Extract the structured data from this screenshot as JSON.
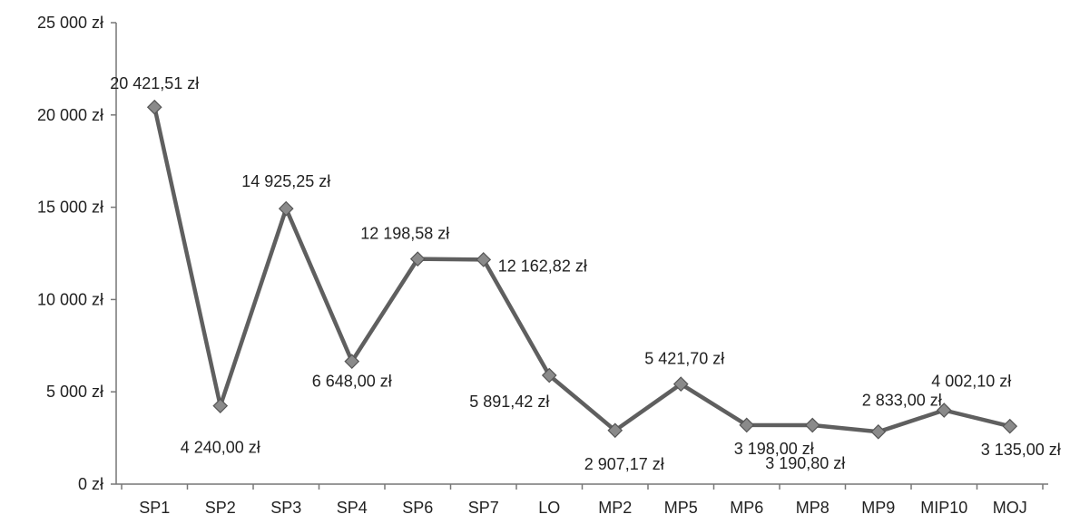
{
  "chart_data": {
    "type": "line",
    "title": "",
    "xlabel": "",
    "ylabel": "",
    "categories": [
      "SP1",
      "SP2",
      "SP3",
      "SP4",
      "SP6",
      "SP7",
      "LO",
      "MP2",
      "MP5",
      "MP6",
      "MP8",
      "MP9",
      "MIP10",
      "MOJ"
    ],
    "values": [
      20421.51,
      4240.0,
      14925.25,
      6648.0,
      12198.58,
      12162.82,
      5891.42,
      2907.17,
      5421.7,
      3198.0,
      3190.8,
      2833.0,
      4002.1,
      3135.0
    ],
    "data_labels": [
      "20 421,51 zł",
      "4 240,00 zł",
      "14 925,25 zł",
      "6 648,00 zł",
      "12 198,58 zł",
      "12 162,82 zł",
      "5 891,42 zł",
      "2 907,17 zł",
      "5 421,70 zł",
      "3 198,00 zł",
      "3 190,80 zł",
      "2 833,00 zł",
      "4 002,10 zł",
      "3 135,00 zł"
    ],
    "ylim": [
      0,
      25000
    ],
    "yticks": [
      0,
      5000,
      10000,
      15000,
      20000,
      25000
    ],
    "ytick_labels": [
      "0 zł",
      "5 000 zł",
      "10 000 zł",
      "15 000 zł",
      "20 000 zł",
      "25 000 zł"
    ],
    "grid": false,
    "legend": "none",
    "colors": {
      "line": "#5f5f5f",
      "marker": "#8a8a8a",
      "marker_stroke": "#555555"
    }
  }
}
